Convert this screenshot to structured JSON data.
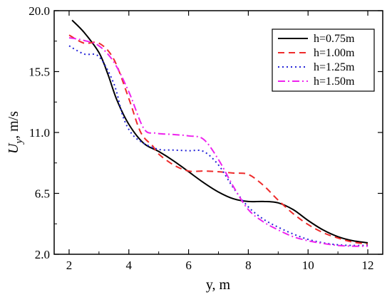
{
  "chart_data": {
    "type": "line",
    "title": "",
    "xlabel": "y, m",
    "ylabel_main": "U",
    "ylabel_sub": "y",
    "ylabel_rest": ", m/s",
    "xlim": [
      1.5,
      12.5
    ],
    "ylim": [
      2.0,
      20.0
    ],
    "xticks": [
      2,
      4,
      6,
      8,
      10,
      12
    ],
    "yticks": [
      2.0,
      6.5,
      11.0,
      15.5,
      20.0
    ],
    "ytick_labels": [
      "2.0",
      "6.5",
      "11.0",
      "15.5",
      "20.0"
    ],
    "grid": false,
    "legend_position": "top-right",
    "series": [
      {
        "name": "h=0.75m",
        "color": "#000000",
        "dash": "solid",
        "points": [
          [
            2.1,
            19.3
          ],
          [
            2.5,
            18.4
          ],
          [
            3.0,
            16.9
          ],
          [
            3.3,
            15.3
          ],
          [
            3.6,
            13.4
          ],
          [
            4.0,
            11.6
          ],
          [
            4.5,
            10.2
          ],
          [
            5.0,
            9.6
          ],
          [
            5.5,
            8.9
          ],
          [
            6.0,
            8.1
          ],
          [
            6.5,
            7.3
          ],
          [
            7.0,
            6.6
          ],
          [
            7.5,
            6.1
          ],
          [
            8.0,
            5.9
          ],
          [
            8.5,
            5.9
          ],
          [
            9.0,
            5.8
          ],
          [
            9.5,
            5.3
          ],
          [
            10.0,
            4.5
          ],
          [
            10.5,
            3.8
          ],
          [
            11.0,
            3.3
          ],
          [
            11.5,
            3.0
          ],
          [
            12.0,
            2.85
          ]
        ]
      },
      {
        "name": "h=1.00m",
        "color": "#ee2b2b",
        "dash": "dash",
        "points": [
          [
            2.0,
            18.2
          ],
          [
            2.5,
            17.6
          ],
          [
            3.0,
            17.6
          ],
          [
            3.5,
            16.4
          ],
          [
            4.0,
            13.5
          ],
          [
            4.4,
            11.0
          ],
          [
            4.8,
            10.0
          ],
          [
            5.0,
            9.4
          ],
          [
            5.5,
            8.6
          ],
          [
            6.0,
            8.15
          ],
          [
            6.5,
            8.15
          ],
          [
            7.0,
            8.1
          ],
          [
            7.5,
            8.0
          ],
          [
            8.0,
            7.9
          ],
          [
            8.5,
            7.1
          ],
          [
            9.0,
            6.0
          ],
          [
            9.5,
            5.0
          ],
          [
            10.0,
            4.2
          ],
          [
            10.5,
            3.6
          ],
          [
            11.0,
            3.2
          ],
          [
            11.5,
            2.9
          ],
          [
            12.0,
            2.75
          ]
        ]
      },
      {
        "name": "h=1.25m",
        "color": "#2424d8",
        "dash": "dot",
        "points": [
          [
            2.0,
            17.4
          ],
          [
            2.5,
            16.8
          ],
          [
            3.0,
            16.6
          ],
          [
            3.5,
            14.6
          ],
          [
            3.8,
            12.2
          ],
          [
            4.1,
            10.9
          ],
          [
            4.5,
            10.2
          ],
          [
            5.0,
            9.75
          ],
          [
            5.5,
            9.7
          ],
          [
            6.0,
            9.65
          ],
          [
            6.5,
            9.6
          ],
          [
            7.0,
            8.6
          ],
          [
            7.5,
            6.9
          ],
          [
            8.0,
            5.5
          ],
          [
            8.5,
            4.6
          ],
          [
            9.0,
            4.0
          ],
          [
            9.5,
            3.5
          ],
          [
            10.0,
            3.1
          ],
          [
            10.5,
            2.85
          ],
          [
            11.0,
            2.7
          ],
          [
            11.5,
            2.65
          ],
          [
            12.0,
            2.65
          ]
        ]
      },
      {
        "name": "h=1.50m",
        "color": "#ee22ee",
        "dash": "dashdot",
        "points": [
          [
            2.0,
            18.0
          ],
          [
            2.5,
            17.8
          ],
          [
            3.0,
            17.4
          ],
          [
            3.5,
            16.2
          ],
          [
            4.0,
            14.0
          ],
          [
            4.5,
            11.3
          ],
          [
            4.9,
            10.95
          ],
          [
            5.5,
            10.85
          ],
          [
            6.0,
            10.75
          ],
          [
            6.5,
            10.5
          ],
          [
            7.0,
            9.0
          ],
          [
            7.5,
            7.0
          ],
          [
            8.0,
            5.3
          ],
          [
            8.5,
            4.4
          ],
          [
            9.0,
            3.8
          ],
          [
            9.5,
            3.3
          ],
          [
            10.0,
            3.0
          ],
          [
            10.5,
            2.8
          ],
          [
            11.0,
            2.65
          ],
          [
            11.5,
            2.6
          ],
          [
            12.0,
            2.6
          ]
        ]
      }
    ]
  }
}
